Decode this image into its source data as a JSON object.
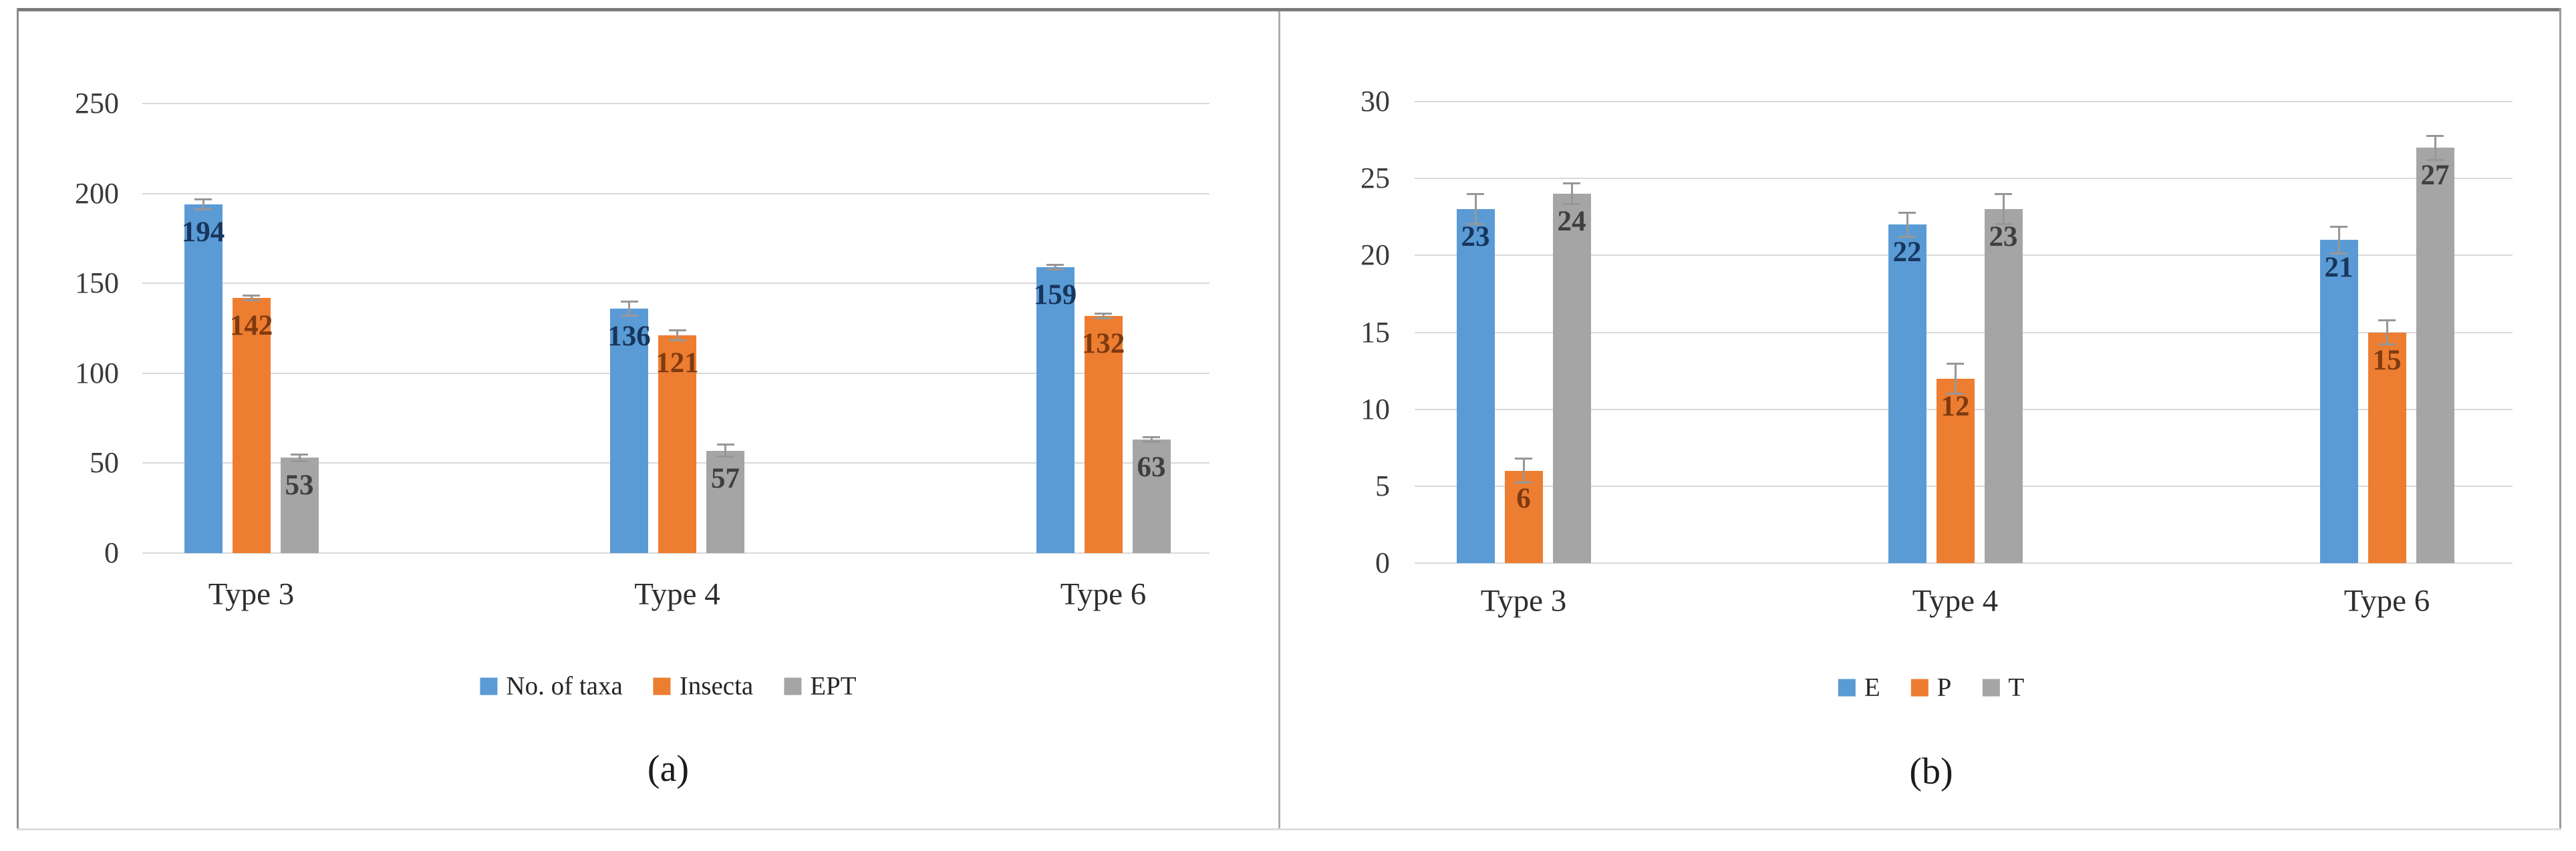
{
  "figure": {
    "background": "#ffffff",
    "frame_color_top": "#7a7a7a",
    "frame_color_bottom": "#dedede",
    "gridline_color": "#d9d9d9",
    "error_bar_color": "#979797"
  },
  "chart_data": [
    {
      "id": "a",
      "type": "bar",
      "title": "",
      "caption": "(a)",
      "categories": [
        "Type 3",
        "Type 4",
        "Type 6"
      ],
      "series": [
        {
          "name": "No. of taxa",
          "color": "#5B9BD5",
          "label_color": "#17365d",
          "values": [
            194,
            136,
            159
          ],
          "errors": [
            3,
            4,
            1.5
          ]
        },
        {
          "name": "Insecta",
          "color": "#ED7D31",
          "label_color": "#7f3a10",
          "values": [
            142,
            121,
            132
          ],
          "errors": [
            1.5,
            3,
            1.5
          ]
        },
        {
          "name": "EPT",
          "color": "#A5A5A5",
          "label_color": "#3f3f3f",
          "values": [
            53,
            57,
            63
          ],
          "errors": [
            2,
            3.5,
            1.5
          ]
        }
      ],
      "xlabel": "",
      "ylabel": "",
      "ylim": [
        0,
        250
      ],
      "yticks": [
        0,
        50,
        100,
        150,
        200,
        250
      ],
      "grid": true,
      "legend_position": "bottom"
    },
    {
      "id": "b",
      "type": "bar",
      "title": "",
      "caption": "(b)",
      "categories": [
        "Type 3",
        "Type 4",
        "Type 6"
      ],
      "series": [
        {
          "name": "E",
          "color": "#5B9BD5",
          "label_color": "#17365d",
          "values": [
            23,
            22,
            21
          ],
          "errors": [
            1,
            0.8,
            0.9
          ]
        },
        {
          "name": "P",
          "color": "#ED7D31",
          "label_color": "#7f3a10",
          "values": [
            6,
            12,
            15
          ],
          "errors": [
            0.8,
            1,
            0.8
          ]
        },
        {
          "name": "T",
          "color": "#A5A5A5",
          "label_color": "#3f3f3f",
          "values": [
            24,
            23,
            27
          ],
          "errors": [
            0.7,
            1,
            0.8
          ]
        }
      ],
      "xlabel": "",
      "ylabel": "",
      "ylim": [
        0,
        30
      ],
      "yticks": [
        0,
        5,
        10,
        15,
        20,
        25,
        30
      ],
      "grid": true,
      "legend_position": "bottom"
    }
  ]
}
